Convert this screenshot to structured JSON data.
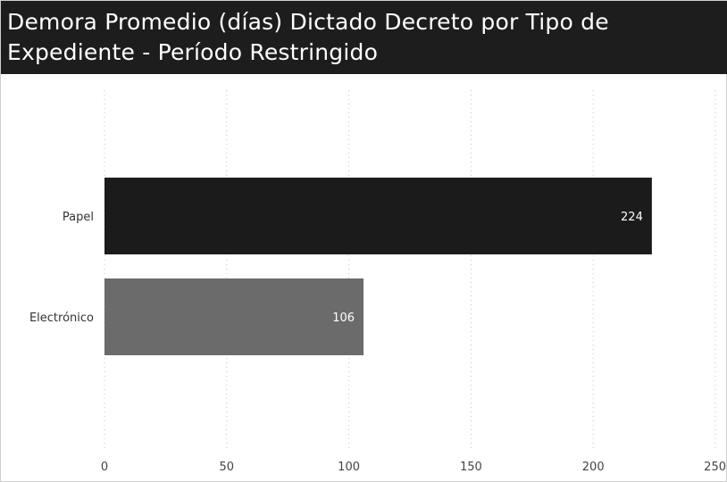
{
  "title": "Demora Promedio (días) Dictado Decreto por Tipo de Expediente - Período Restringido",
  "chart_data": {
    "type": "bar",
    "orientation": "horizontal",
    "title": "Demora Promedio (días) Dictado Decreto por Tipo de Expediente - Período Restringido",
    "categories": [
      "Papel",
      "Electrónico"
    ],
    "values": [
      224,
      106
    ],
    "data_labels": [
      "224",
      "106"
    ],
    "bar_colors": [
      "#1b1b1b",
      "#6b6b6b"
    ],
    "xlim": [
      0,
      250
    ],
    "x_ticks": [
      0,
      50,
      100,
      150,
      200,
      250
    ],
    "x_tick_labels": [
      "0",
      "50",
      "100",
      "150",
      "200",
      "250"
    ],
    "xlabel": "",
    "ylabel": "",
    "grid": "vertical dotted",
    "legend": "none"
  }
}
